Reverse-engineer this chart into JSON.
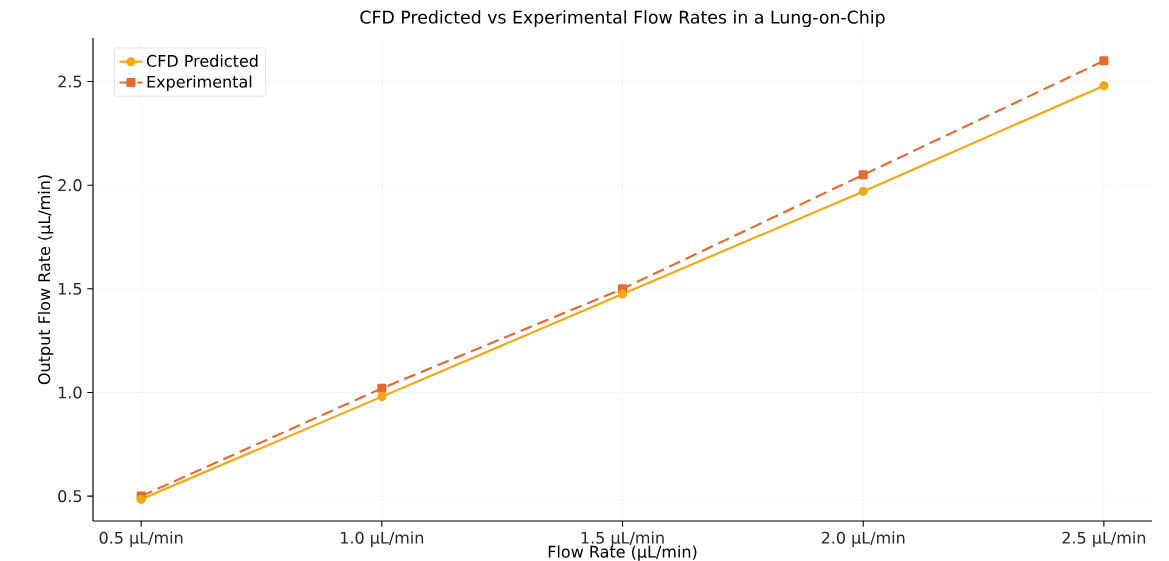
{
  "chart_data": {
    "type": "line",
    "title": "CFD Predicted vs Experimental Flow Rates in a Lung-on-Chip",
    "xlabel": "Flow Rate (µL/min)",
    "ylabel": "Output Flow Rate (µL/min)",
    "categories": [
      "0.5 µL/min",
      "1.0 µL/min",
      "1.5 µL/min",
      "2.0 µL/min",
      "2.5 µL/min"
    ],
    "series": [
      {
        "name": "CFD Predicted",
        "color": "#f5a70c",
        "marker": "circle",
        "line_style": "solid",
        "values": [
          0.485,
          0.98,
          1.475,
          1.97,
          2.48
        ]
      },
      {
        "name": "Experimental",
        "color": "#e9692c",
        "marker": "square",
        "line_style": "dashed",
        "values": [
          0.5,
          1.02,
          1.5,
          2.05,
          2.6
        ]
      }
    ],
    "ylim": [
      0.38,
      2.71
    ],
    "yticks": [
      0.5,
      {
        "value": 1,
        "label": "1.0"
      },
      1.5,
      {
        "value": 2,
        "label": "2.0"
      },
      2.5
    ],
    "grid": true,
    "legend": "top left"
  }
}
